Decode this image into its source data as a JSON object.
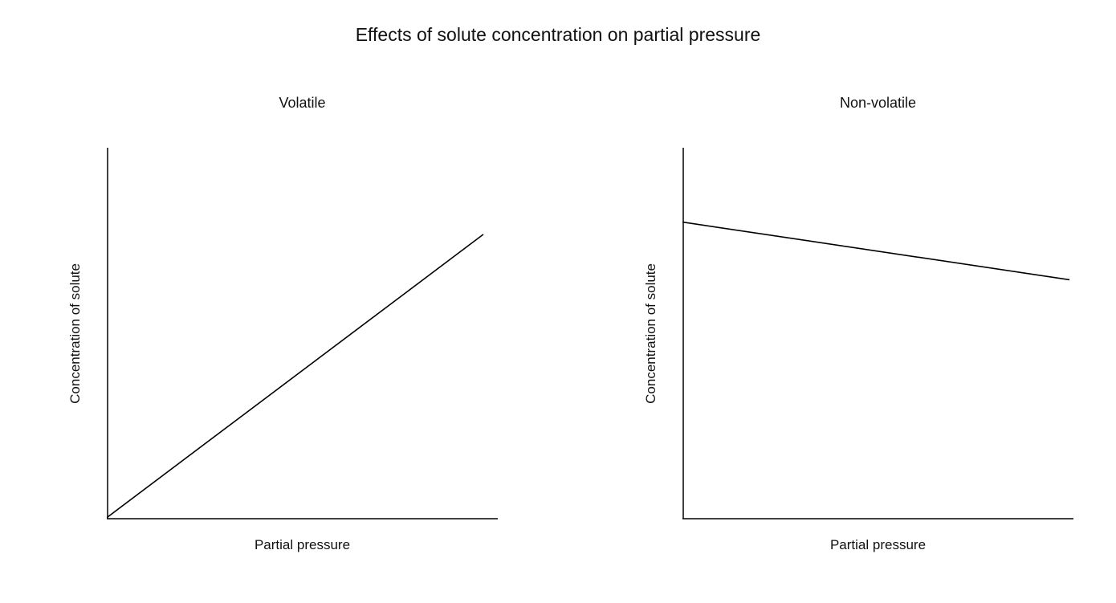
{
  "page": {
    "title": "Effects of solute concentration on partial pressure"
  },
  "colors": {
    "background": "#ffffff",
    "axis": "#000000",
    "line": "#000000",
    "text": "#111111"
  },
  "chart_data": [
    {
      "type": "line",
      "title": "Volatile",
      "xlabel": "Partial pressure",
      "ylabel": "Concentration of solute",
      "axes": "unlabeled qualitative axes, no ticks, no gridlines",
      "trend": "straight line with positive slope starting at the origin",
      "x": [
        0,
        0.96
      ],
      "y": [
        0,
        0.77
      ],
      "points": [
        [
          0.0,
          0.005
        ],
        [
          0.963,
          0.767
        ]
      ],
      "xlim": [
        0,
        1
      ],
      "ylim": [
        0,
        1
      ]
    },
    {
      "type": "line",
      "title": "Non-volatile",
      "xlabel": "Partial pressure",
      "ylabel": "Concentration of solute",
      "axes": "unlabeled qualitative axes, no ticks, no gridlines",
      "trend": "nearly horizontal straight line with slight negative slope, starting high on y-axis",
      "x": [
        0,
        0.99
      ],
      "y": [
        0.8,
        0.645
      ],
      "points": [
        [
          0.0,
          0.8
        ],
        [
          0.99,
          0.645
        ]
      ],
      "xlim": [
        0,
        1
      ],
      "ylim": [
        0,
        1
      ]
    }
  ]
}
